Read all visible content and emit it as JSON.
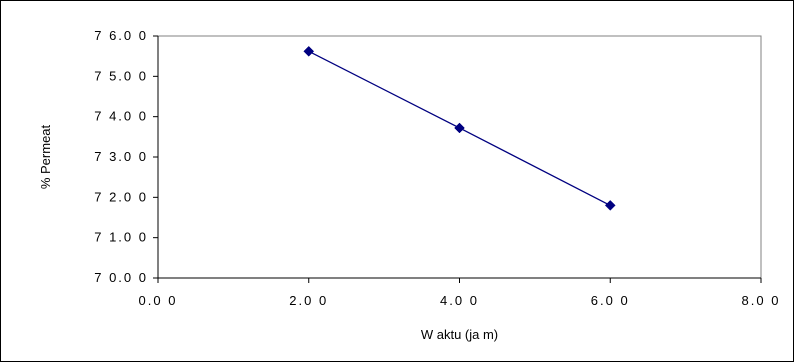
{
  "chart_data": {
    "type": "line",
    "title": "",
    "xlabel": "W aktu  (ja m)",
    "ylabel": "% Permeat",
    "xlim": [
      0,
      8
    ],
    "ylim": [
      70,
      76
    ],
    "x_tick_values": [
      0,
      2,
      4,
      6,
      8
    ],
    "x_tick_labels": [
      "0.0 0",
      "2.0 0",
      "4.0 0",
      "6.0 0",
      "8.0 0"
    ],
    "y_tick_values": [
      70,
      71,
      72,
      73,
      74,
      75,
      76
    ],
    "y_tick_labels": [
      "7 0.0 0",
      "7 1.0 0",
      "7 2.0 0",
      "7 3.0 0",
      "7 4.0 0",
      "7 5.0 0",
      "7 6.0 0"
    ],
    "grid": false,
    "legend": "none",
    "series": [
      {
        "x": [
          2,
          4,
          6
        ],
        "y": [
          75.62,
          73.72,
          71.8
        ],
        "color": "#000080",
        "marker": "diamond"
      }
    ]
  }
}
